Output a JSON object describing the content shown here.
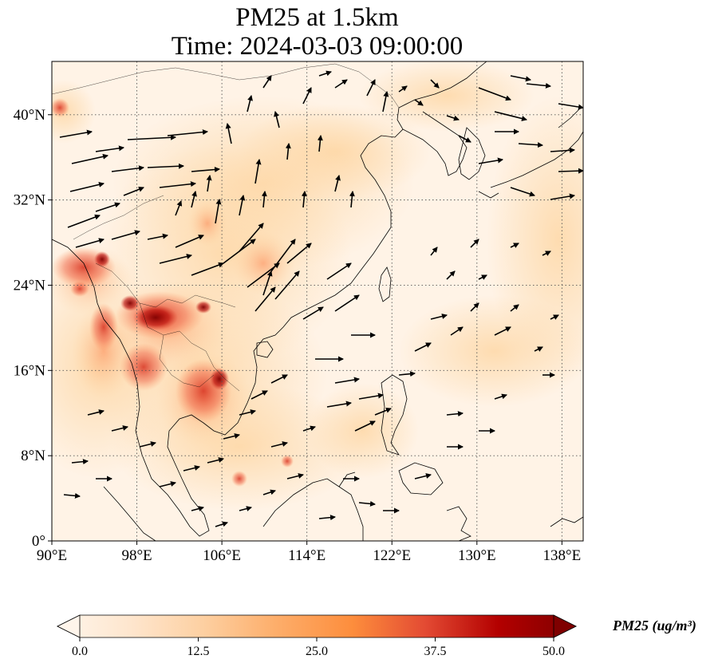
{
  "title": {
    "line1": "PM25 at 1.5km",
    "line2": "Time: 2024-03-03 09:00:00"
  },
  "map": {
    "lon_range": [
      90,
      140
    ],
    "lat_range": [
      0,
      45
    ],
    "lon_ticks": [
      "90°E",
      "98°E",
      "106°E",
      "114°E",
      "122°E",
      "130°E",
      "138°E"
    ],
    "lat_ticks": [
      "0°",
      "8°N",
      "16°N",
      "24°N",
      "32°N",
      "40°N"
    ],
    "gridlines": true,
    "field": "PM25",
    "overlay": "wind vectors (arrows)"
  },
  "colorbar": {
    "label": "PM25 (ug/m³)",
    "ticks": [
      "0.0",
      "12.5",
      "25.0",
      "37.5",
      "50.0"
    ],
    "min": 0,
    "max": 50,
    "extend": "both",
    "colormap": [
      "#fff5eb",
      "#fdd0a2",
      "#fdae6b",
      "#fd8d3c",
      "#f16913",
      "#d94801",
      "#a63603",
      "#7f2704"
    ]
  },
  "colors": {
    "background": "#fff3e6",
    "hotspot_dark": "#7f0000",
    "hotspot_mid": "#d7301f",
    "hotspot_light": "#fc8d59",
    "coast": "#000000",
    "arrow": "#000000",
    "grid": "#555555"
  }
}
